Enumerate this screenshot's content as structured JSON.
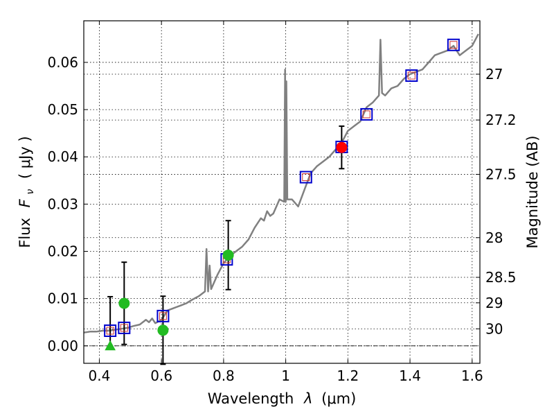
{
  "chart_data": {
    "type": "scatter",
    "x_label_prefix": "Wavelength",
    "x_label_symbol": "λ",
    "x_label_unit": "(μm)",
    "y_label_prefix": "Flux",
    "y_label_symbol": "F",
    "y_label_subscript": "ν",
    "y_label_unit": "( μJy )",
    "y2_label": "Magnitude (AB)",
    "xlim": [
      0.35,
      1.625
    ],
    "ylim": [
      -0.0037,
      0.0688
    ],
    "x_ticks": [
      0.4,
      0.6,
      0.8,
      1.0,
      1.2,
      1.4,
      1.6
    ],
    "x_tick_labels": [
      "0.4",
      "0.6",
      "0.8",
      "1",
      "1.2",
      "1.4",
      "1.6"
    ],
    "y_ticks": [
      0.0,
      0.01,
      0.02,
      0.03,
      0.04,
      0.05,
      0.06
    ],
    "y_tick_labels": [
      "0.00",
      "0.01",
      "0.02",
      "0.03",
      "0.04",
      "0.05",
      "0.06"
    ],
    "mag_ticks": [
      {
        "label": "27",
        "flux": 0.0575
      },
      {
        "label": "27.2",
        "flux": 0.0478
      },
      {
        "label": "27.5",
        "flux": 0.0363
      },
      {
        "label": "28",
        "flux": 0.0229
      },
      {
        "label": "28.5",
        "flux": 0.0145
      },
      {
        "label": "29",
        "flux": 0.0091
      },
      {
        "label": "30",
        "flux": 0.0036
      }
    ],
    "grid": true,
    "zero_line": 0.0,
    "colors": {
      "model": "#808080",
      "model_bands": "#0000cc",
      "model_bands_inner": "#cc3333",
      "detection_green": "#22bb22",
      "detection_red": "#ff0000",
      "errorbar": "#000000"
    },
    "series": [
      {
        "name": "model spectrum",
        "kind": "line",
        "x": [
          0.35,
          0.37,
          0.39,
          0.41,
          0.43,
          0.45,
          0.47,
          0.49,
          0.51,
          0.53,
          0.55,
          0.56,
          0.57,
          0.58,
          0.6,
          0.62,
          0.64,
          0.66,
          0.68,
          0.7,
          0.72,
          0.74,
          0.745,
          0.75,
          0.755,
          0.76,
          0.78,
          0.8,
          0.82,
          0.84,
          0.86,
          0.88,
          0.9,
          0.92,
          0.93,
          0.94,
          0.95,
          0.96,
          0.98,
          0.995,
          0.998,
          1.0,
          1.002,
          1.005,
          1.02,
          1.04,
          1.06,
          1.08,
          1.1,
          1.12,
          1.14,
          1.16,
          1.18,
          1.2,
          1.22,
          1.24,
          1.26,
          1.28,
          1.3,
          1.305,
          1.31,
          1.32,
          1.34,
          1.36,
          1.38,
          1.4,
          1.42,
          1.44,
          1.46,
          1.48,
          1.5,
          1.52,
          1.54,
          1.56,
          1.58,
          1.6,
          1.62
        ],
        "y": [
          0.0028,
          0.003,
          0.003,
          0.0032,
          0.0032,
          0.0034,
          0.0036,
          0.0038,
          0.0042,
          0.0045,
          0.0055,
          0.005,
          0.0058,
          0.0048,
          0.0055,
          0.0075,
          0.008,
          0.0085,
          0.009,
          0.0098,
          0.0105,
          0.0115,
          0.0205,
          0.0115,
          0.017,
          0.012,
          0.015,
          0.0175,
          0.019,
          0.02,
          0.021,
          0.0225,
          0.025,
          0.027,
          0.0265,
          0.0285,
          0.0275,
          0.028,
          0.031,
          0.0305,
          0.0585,
          0.0305,
          0.056,
          0.031,
          0.031,
          0.0295,
          0.033,
          0.0365,
          0.038,
          0.039,
          0.04,
          0.0415,
          0.043,
          0.0455,
          0.0465,
          0.0475,
          0.0505,
          0.0515,
          0.053,
          0.0648,
          0.0535,
          0.053,
          0.0545,
          0.055,
          0.0565,
          0.0575,
          0.058,
          0.0585,
          0.06,
          0.0615,
          0.062,
          0.0625,
          0.0635,
          0.0615,
          0.0625,
          0.0635,
          0.066
        ]
      },
      {
        "name": "model band fluxes",
        "kind": "open-square",
        "x": [
          0.435,
          0.48,
          0.605,
          0.81,
          1.065,
          1.18,
          1.26,
          1.405,
          1.54
        ],
        "y": [
          0.0032,
          0.0038,
          0.0063,
          0.0183,
          0.0357,
          0.0421,
          0.049,
          0.0572,
          0.0637
        ]
      },
      {
        "name": "ground detections",
        "kind": "filled-circle",
        "x": [
          0.48,
          0.605,
          0.815
        ],
        "y": [
          0.009,
          0.0033,
          0.0192
        ],
        "yerr": [
          0.0087,
          0.0072,
          0.0073
        ]
      },
      {
        "name": "space detection",
        "kind": "filled-circle",
        "x": [
          1.18
        ],
        "y": [
          0.042
        ],
        "yerr": [
          0.0045
        ]
      },
      {
        "name": "upper limit",
        "kind": "triangle",
        "x": [
          0.435
        ],
        "y": [
          0.0
        ],
        "yerr_low": [
          0.0
        ],
        "yerr_high": [
          0.0104
        ]
      }
    ]
  }
}
